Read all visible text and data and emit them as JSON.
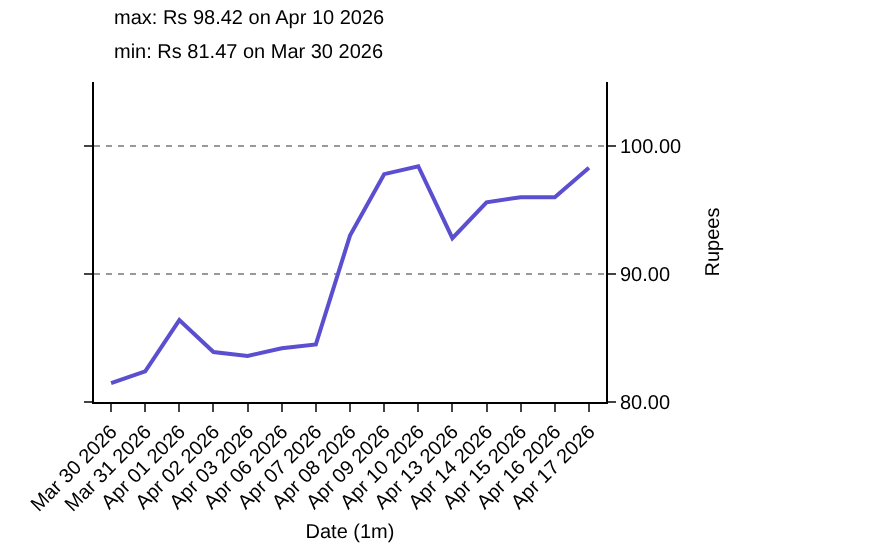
{
  "chart_data": {
    "type": "line",
    "title": "max: Rs 98.42 on Apr 10 2026",
    "subtitle": "min: Rs 81.47 on Mar 30 2026",
    "xlabel": "Date (1m)",
    "ylabel": "Rupees",
    "categories": [
      "Mar 30 2026",
      "Mar 31 2026",
      "Apr 01 2026",
      "Apr 02 2026",
      "Apr 03 2026",
      "Apr 06 2026",
      "Apr 07 2026",
      "Apr 08 2026",
      "Apr 09 2026",
      "Apr 10 2026",
      "Apr 13 2026",
      "Apr 14 2026",
      "Apr 15 2026",
      "Apr 16 2026",
      "Apr 17 2026"
    ],
    "series": [
      {
        "color": "#5b4fcf",
        "values": [
          81.47,
          82.4,
          86.4,
          83.9,
          83.6,
          84.2,
          84.5,
          93.0,
          97.8,
          98.42,
          92.8,
          95.6,
          96.0,
          96.0,
          98.3
        ]
      }
    ],
    "ylim": [
      80,
      105
    ],
    "yticks": [
      {
        "value": 80,
        "label": "80.00"
      },
      {
        "value": 90,
        "label": "90.00"
      },
      {
        "value": 100,
        "label": "100.00"
      }
    ],
    "grid": "y",
    "marker": "none",
    "line_style": "solid"
  }
}
